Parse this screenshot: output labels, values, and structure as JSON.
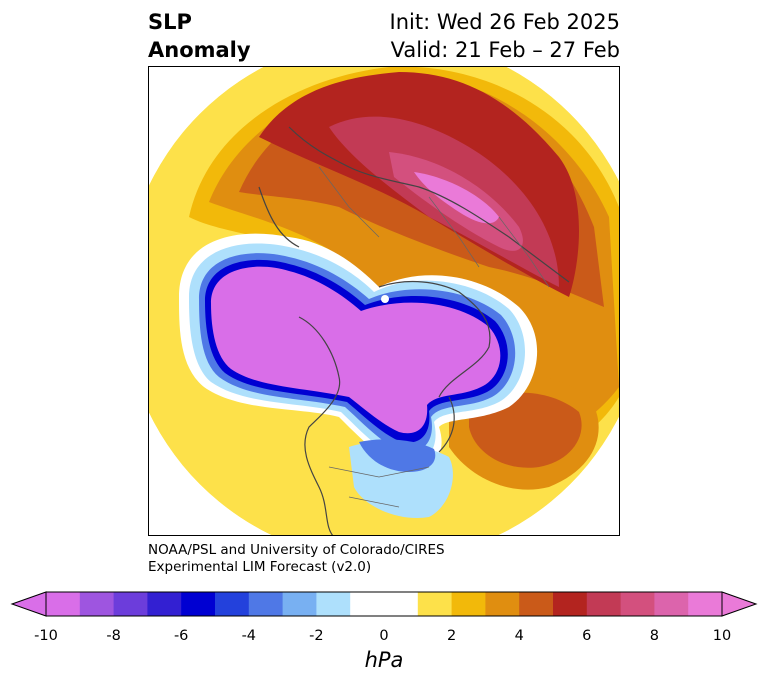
{
  "title": {
    "left_line1": "SLP",
    "left_line2": "Anomaly",
    "right_line1": "Init: Wed 26 Feb 2025",
    "right_line2": "Valid: 21 Feb – 27 Feb"
  },
  "credit": {
    "line1": "NOAA/PSL and University of Colorado/CIRES",
    "line2": "Experimental LIM Forecast (v2.0)"
  },
  "colorbar": {
    "unit": "hPa",
    "ticks": [
      "-10",
      "-8",
      "-6",
      "-4",
      "-2",
      "0",
      "2",
      "4",
      "6",
      "8",
      "10"
    ],
    "colors": [
      "#d96ee8",
      "#9e55e0",
      "#6c3ddb",
      "#3320d2",
      "#0000d2",
      "#2341dc",
      "#4f78e6",
      "#78b0f2",
      "#aee0fc",
      "#ffffff",
      "#ffffff",
      "#fde14a",
      "#f2b90a",
      "#e08e10",
      "#ca5a19",
      "#b3241f",
      "#c23a55",
      "#d3507e",
      "#dc64ac",
      "#ea7ad8"
    ]
  }
}
